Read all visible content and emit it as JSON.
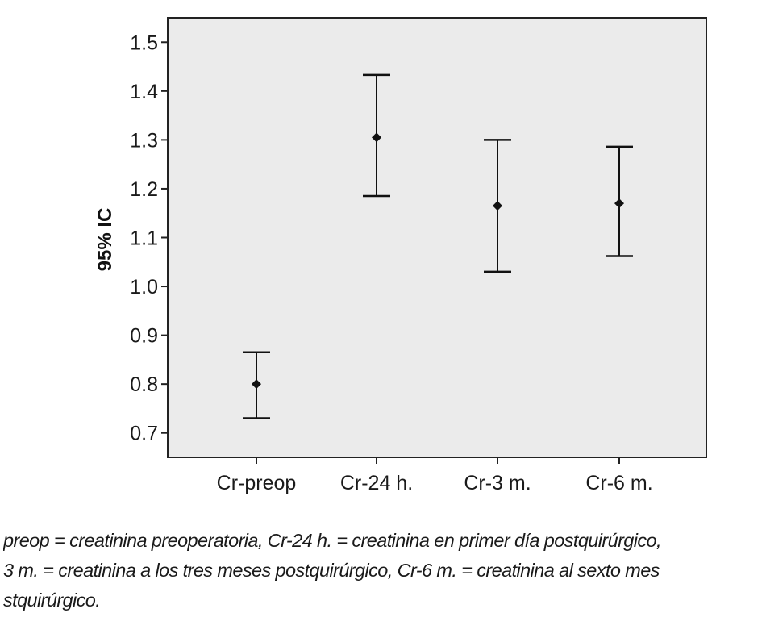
{
  "chart_data": {
    "type": "errorbar",
    "ylabel": "95% IC",
    "xlabel": "",
    "ylim": [
      0.65,
      1.55
    ],
    "yticks": [
      "0.7",
      "0.8",
      "0.9",
      "1.0",
      "1.1",
      "1.2",
      "1.3",
      "1.4",
      "1.5"
    ],
    "categories": [
      "Cr-preop",
      "Cr-24 h.",
      "Cr-3 m.",
      "Cr-6 m."
    ],
    "means": [
      0.8,
      1.305,
      1.165,
      1.17
    ],
    "lower": [
      0.73,
      1.185,
      1.03,
      1.062
    ],
    "upper": [
      0.865,
      1.433,
      1.3,
      1.286
    ],
    "grid": false,
    "background": "#ebebeb",
    "mark_color": "#111111"
  },
  "caption": {
    "lines": [
      "preop = creatinina preoperatoria, Cr-24 h.  = creatinina en primer día postquirúrgico,",
      "3 m. = creatinina a los tres meses postquirúrgico, Cr-6 m. = creatinina al sexto mes",
      "stquirúrgico."
    ]
  }
}
